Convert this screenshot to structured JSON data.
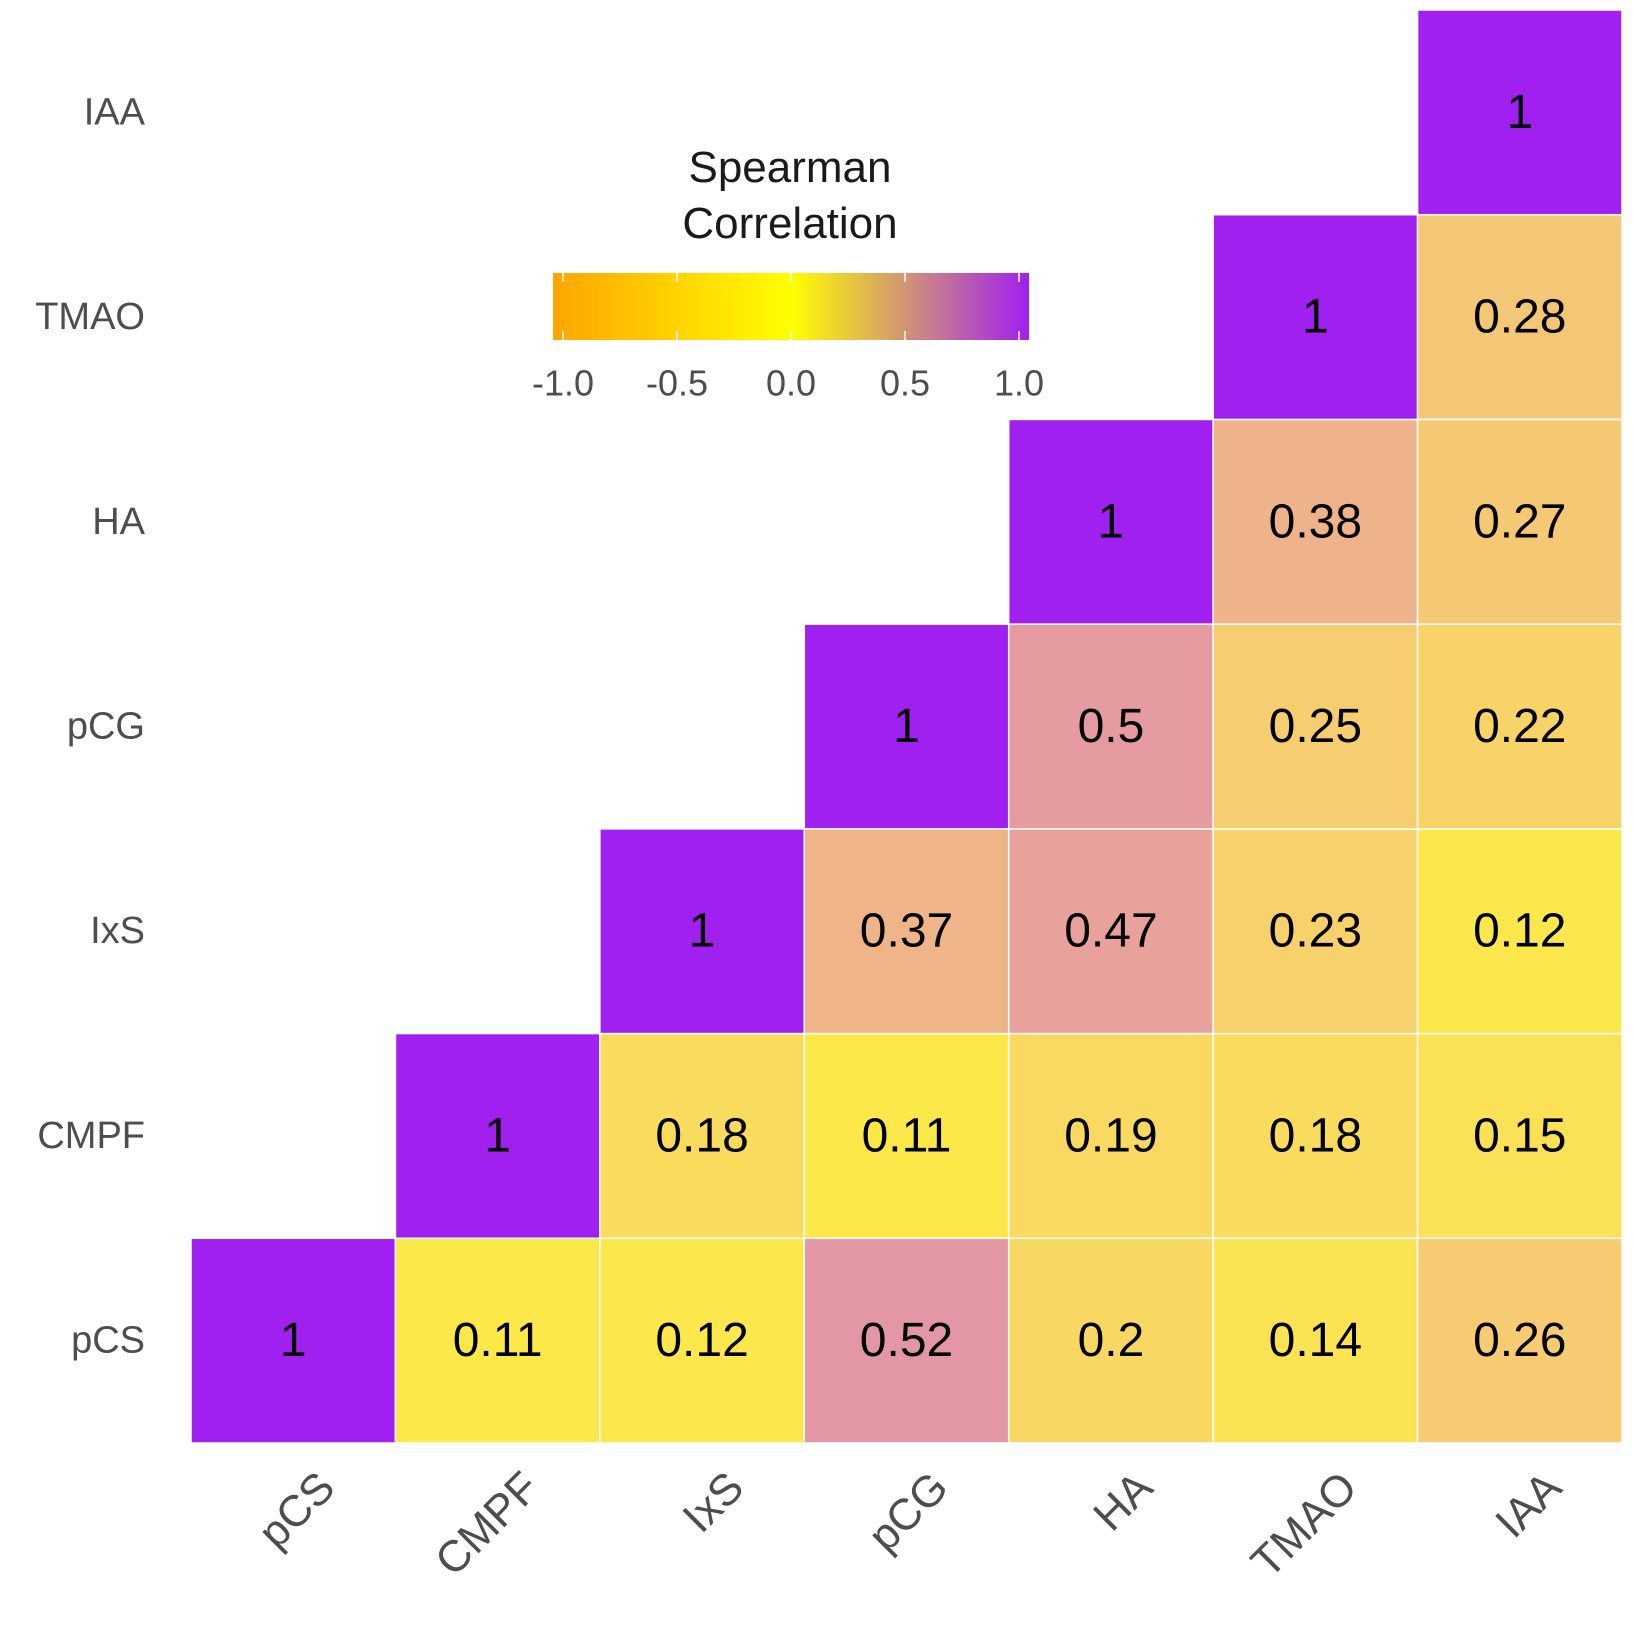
{
  "chart_data": {
    "type": "heatmap",
    "subtype": "lower-triangular correlation matrix",
    "variables": [
      "pCS",
      "CMPF",
      "IxS",
      "pCG",
      "HA",
      "TMAO",
      "IAA"
    ],
    "cells": [
      {
        "row": "pCS",
        "col": "pCS",
        "value": 1,
        "label": "1"
      },
      {
        "row": "pCS",
        "col": "CMPF",
        "value": 0.11,
        "label": "0.11"
      },
      {
        "row": "pCS",
        "col": "IxS",
        "value": 0.12,
        "label": "0.12"
      },
      {
        "row": "pCS",
        "col": "pCG",
        "value": 0.52,
        "label": "0.52"
      },
      {
        "row": "pCS",
        "col": "HA",
        "value": 0.2,
        "label": "0.2"
      },
      {
        "row": "pCS",
        "col": "TMAO",
        "value": 0.14,
        "label": "0.14"
      },
      {
        "row": "pCS",
        "col": "IAA",
        "value": 0.26,
        "label": "0.26"
      },
      {
        "row": "CMPF",
        "col": "CMPF",
        "value": 1,
        "label": "1"
      },
      {
        "row": "CMPF",
        "col": "IxS",
        "value": 0.18,
        "label": "0.18"
      },
      {
        "row": "CMPF",
        "col": "pCG",
        "value": 0.11,
        "label": "0.11"
      },
      {
        "row": "CMPF",
        "col": "HA",
        "value": 0.19,
        "label": "0.19"
      },
      {
        "row": "CMPF",
        "col": "TMAO",
        "value": 0.18,
        "label": "0.18"
      },
      {
        "row": "CMPF",
        "col": "IAA",
        "value": 0.15,
        "label": "0.15"
      },
      {
        "row": "IxS",
        "col": "IxS",
        "value": 1,
        "label": "1"
      },
      {
        "row": "IxS",
        "col": "pCG",
        "value": 0.37,
        "label": "0.37"
      },
      {
        "row": "IxS",
        "col": "HA",
        "value": 0.47,
        "label": "0.47"
      },
      {
        "row": "IxS",
        "col": "TMAO",
        "value": 0.23,
        "label": "0.23"
      },
      {
        "row": "IxS",
        "col": "IAA",
        "value": 0.12,
        "label": "0.12"
      },
      {
        "row": "pCG",
        "col": "pCG",
        "value": 1,
        "label": "1"
      },
      {
        "row": "pCG",
        "col": "HA",
        "value": 0.5,
        "label": "0.5"
      },
      {
        "row": "pCG",
        "col": "TMAO",
        "value": 0.25,
        "label": "0.25"
      },
      {
        "row": "pCG",
        "col": "IAA",
        "value": 0.22,
        "label": "0.22"
      },
      {
        "row": "HA",
        "col": "HA",
        "value": 1,
        "label": "1"
      },
      {
        "row": "HA",
        "col": "TMAO",
        "value": 0.38,
        "label": "0.38"
      },
      {
        "row": "HA",
        "col": "IAA",
        "value": 0.27,
        "label": "0.27"
      },
      {
        "row": "TMAO",
        "col": "TMAO",
        "value": 1,
        "label": "1"
      },
      {
        "row": "TMAO",
        "col": "IAA",
        "value": 0.28,
        "label": "0.28"
      },
      {
        "row": "IAA",
        "col": "IAA",
        "value": 1,
        "label": "1"
      }
    ],
    "legend": {
      "title_lines": [
        "Spearman",
        "Correlation"
      ],
      "ticks": [
        -1.0,
        -0.5,
        0.0,
        0.5,
        1.0
      ],
      "tick_labels": [
        "-1.0",
        "-0.5",
        "0.0",
        "0.5",
        "1.0"
      ],
      "range": [
        -1,
        1
      ],
      "colors": {
        "low": "#FFA500",
        "mid": "#FFFF00",
        "high": "#A020F0"
      },
      "orientation": "horizontal",
      "placement": "top-left inside plot area"
    },
    "x_tick_rotation_deg": 45,
    "grid": false
  }
}
